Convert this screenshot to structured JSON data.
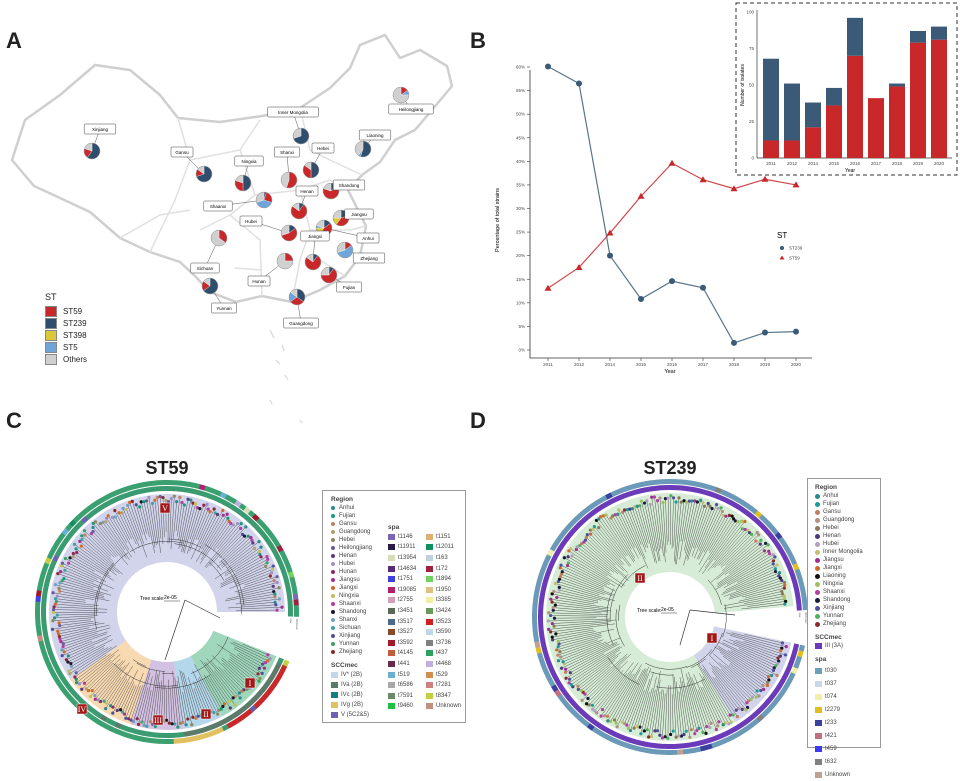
{
  "panels": {
    "a": "A",
    "b": "B",
    "c": "C",
    "d": "D"
  },
  "map": {
    "legend_title": "ST",
    "st_types": [
      {
        "name": "ST59",
        "color": "#c8282a"
      },
      {
        "name": "ST239",
        "color": "#2f4e6e"
      },
      {
        "name": "ST398",
        "color": "#d8c83a"
      },
      {
        "name": "ST5",
        "color": "#6fa5d8"
      },
      {
        "name": "Others",
        "color": "#d0d0d0"
      }
    ],
    "provinces": [
      {
        "name": "Xinjiang",
        "share": {
          "ST239": 0.6,
          "ST59": 0.2,
          "Others": 0.2
        }
      },
      {
        "name": "Heilongjiang",
        "share": {
          "ST59": 0.15,
          "ST5": 0.1,
          "Others": 0.75
        }
      },
      {
        "name": "Inner Mongolia",
        "share": {
          "ST239": 0.7,
          "Others": 0.3
        }
      },
      {
        "name": "Liaoning",
        "share": {
          "ST239": 0.55,
          "ST5": 0.05,
          "Others": 0.4
        }
      },
      {
        "name": "Gansu",
        "share": {
          "ST239": 0.7,
          "ST59": 0.15,
          "Others": 0.15
        }
      },
      {
        "name": "Ningxia",
        "share": {
          "ST239": 0.5,
          "ST59": 0.3,
          "Others": 0.2
        }
      },
      {
        "name": "Shanxi",
        "share": {
          "ST59": 0.55,
          "Others": 0.45
        }
      },
      {
        "name": "Hebei",
        "share": {
          "ST239": 0.5,
          "ST59": 0.35,
          "Others": 0.15
        }
      },
      {
        "name": "Shaanxi",
        "share": {
          "ST5": 0.4,
          "ST239": 0.05,
          "ST59": 0.25,
          "Others": 0.3
        }
      },
      {
        "name": "Shandong",
        "share": {
          "ST59": 0.65,
          "ST239": 0.15,
          "Others": 0.2
        }
      },
      {
        "name": "Henan",
        "share": {
          "ST59": 0.75,
          "ST239": 0.1,
          "Others": 0.15
        }
      },
      {
        "name": "Jiangsu",
        "share": {
          "ST59": 0.4,
          "ST398": 0.15,
          "ST239": 0.2,
          "Others": 0.25
        }
      },
      {
        "name": "Anhui",
        "share": {
          "ST59": 0.45,
          "ST398": 0.15,
          "ST239": 0.15,
          "ST5": 0.05,
          "Others": 0.2
        }
      },
      {
        "name": "Hubei",
        "share": {
          "ST59": 0.55,
          "ST239": 0.15,
          "Others": 0.3
        }
      },
      {
        "name": "Sichuan",
        "share": {
          "ST59": 0.35,
          "Others": 0.65
        }
      },
      {
        "name": "Zhejiang",
        "share": {
          "ST5": 0.55,
          "ST59": 0.15,
          "Others": 0.3
        }
      },
      {
        "name": "Hunan",
        "share": {
          "ST59": 0.25,
          "Others": 0.75
        }
      },
      {
        "name": "Jiangxi",
        "share": {
          "ST59": 0.75,
          "ST239": 0.1,
          "Others": 0.15
        }
      },
      {
        "name": "Fujian",
        "share": {
          "ST59": 0.65,
          "ST239": 0.1,
          "Others": 0.25
        }
      },
      {
        "name": "Yunnan",
        "share": {
          "ST239": 0.65,
          "ST59": 0.2,
          "Others": 0.15
        }
      },
      {
        "name": "Guangdong",
        "share": {
          "ST239": 0.35,
          "ST59": 0.3,
          "ST5": 0.2,
          "Others": 0.15
        }
      }
    ]
  },
  "chart_data": [
    {
      "type": "line",
      "xlabel": "Year",
      "ylabel": "Percentage of total strains",
      "categories": [
        "2011",
        "2012",
        "2014",
        "2015",
        "2016",
        "2017",
        "2018",
        "2019",
        "2020"
      ],
      "ylim": [
        0,
        60
      ],
      "yticks": [
        "0%",
        "5%",
        "10%",
        "15%",
        "20%",
        "25%",
        "30%",
        "35%",
        "40%",
        "45%",
        "50%",
        "55%",
        "60%"
      ],
      "legend_title": "ST",
      "legend_position": "right",
      "grid": false,
      "series": [
        {
          "name": "ST239",
          "color": "#3a5a78",
          "marker": "circle",
          "values": [
            60.1,
            56.5,
            20.0,
            10.8,
            14.6,
            13.2,
            1.5,
            3.7,
            3.9
          ]
        },
        {
          "name": "ST59",
          "color": "#c8282a",
          "marker": "triangle",
          "values": [
            13.1,
            17.5,
            24.8,
            32.6,
            39.6,
            36.1,
            34.2,
            36.2,
            35.0
          ]
        }
      ]
    },
    {
      "type": "bar",
      "stacked": true,
      "xlabel": "Year",
      "ylabel": "Number of isolates",
      "categories": [
        "2011",
        "2012",
        "2014",
        "2015",
        "2016",
        "2017",
        "2018",
        "2019",
        "2020"
      ],
      "ylim": [
        0,
        100
      ],
      "yticks": [
        "0",
        "25",
        "50",
        "75",
        "100"
      ],
      "series": [
        {
          "key": "ST59",
          "color": "#c8282a",
          "values": [
            12,
            12,
            21,
            36,
            70,
            41,
            49,
            79,
            81
          ]
        },
        {
          "key": "ST239",
          "color": "#3a5a78",
          "values": [
            56,
            39,
            17,
            12,
            26,
            0,
            2,
            8,
            9
          ]
        }
      ]
    }
  ],
  "tree_c": {
    "title": "ST59",
    "scale_label": "Tree scale:",
    "scale_value": "2e-05",
    "ring_labels": [
      "SCCmec",
      "spa"
    ],
    "clades": [
      {
        "label": "V",
        "color": "#c9cde6"
      },
      {
        "label": "I",
        "color": "#8fd0b0"
      },
      {
        "label": "II",
        "color": "#a8d0e8"
      },
      {
        "label": "III",
        "color": "#cbb6dc"
      },
      {
        "label": "IV",
        "color": "#f6d2a4"
      }
    ],
    "legend": {
      "region_title": "Region",
      "regions": [
        {
          "name": "Anhui",
          "color": "#2a8a8a"
        },
        {
          "name": "Fujian",
          "color": "#1a9a7a"
        },
        {
          "name": "Gansu",
          "color": "#c08060"
        },
        {
          "name": "Guangdong",
          "color": "#b0a070"
        },
        {
          "name": "Hebei",
          "color": "#8a8a5a"
        },
        {
          "name": "Heilongjiang",
          "color": "#6a5a9a"
        },
        {
          "name": "Henan",
          "color": "#5a3a7a"
        },
        {
          "name": "Hubei",
          "color": "#a090c0"
        },
        {
          "name": "Hunan",
          "color": "#8a2a5a"
        },
        {
          "name": "Jiangsu",
          "color": "#a03090"
        },
        {
          "name": "Jiangxi",
          "color": "#d06a2a"
        },
        {
          "name": "Ningxia",
          "color": "#c0c060"
        },
        {
          "name": "Shaanxi",
          "color": "#b040a0"
        },
        {
          "name": "Shandong",
          "color": "#1a1a2a"
        },
        {
          "name": "Shanxi",
          "color": "#70a0c0"
        },
        {
          "name": "Sichuan",
          "color": "#40a0a0"
        },
        {
          "name": "Xinjiang",
          "color": "#5050a0"
        },
        {
          "name": "Yunnan",
          "color": "#40a060"
        },
        {
          "name": "Zhejiang",
          "color": "#8a2a2a"
        }
      ],
      "sccmec_title": "SCCmec",
      "sccmec": [
        {
          "name": "IV* (2B)",
          "color": "#c0d8e8"
        },
        {
          "name": "IVa (2B)",
          "color": "#5a7a6a"
        },
        {
          "name": "IVc (2B)",
          "color": "#108080"
        },
        {
          "name": "IVg (2B)",
          "color": "#e0c060"
        },
        {
          "name": "V (5C2&5)",
          "color": "#7060b0"
        }
      ],
      "spa_title": "spa",
      "spa": [
        {
          "name": "t1146",
          "color": "#7b68b5"
        },
        {
          "name": "t1151",
          "color": "#e0b070"
        },
        {
          "name": "t11911",
          "color": "#2a1a4a"
        },
        {
          "name": "t12011",
          "color": "#109060"
        },
        {
          "name": "t13954",
          "color": "#d8dcb8"
        },
        {
          "name": "t163",
          "color": "#c0d0e0"
        },
        {
          "name": "t14634",
          "color": "#5a2a7a"
        },
        {
          "name": "t172",
          "color": "#a02040"
        },
        {
          "name": "t1751",
          "color": "#4040e0"
        },
        {
          "name": "t1894",
          "color": "#70d060"
        },
        {
          "name": "t19085",
          "color": "#b0206a"
        },
        {
          "name": "t1950",
          "color": "#e0c080"
        },
        {
          "name": "t2755",
          "color": "#d4a0b8"
        },
        {
          "name": "t3385",
          "color": "#f0f0a0"
        },
        {
          "name": "t3451",
          "color": "#5a6a5a"
        },
        {
          "name": "t3424",
          "color": "#6a9a5a"
        },
        {
          "name": "t3517",
          "color": "#4a6a8a"
        },
        {
          "name": "t3523",
          "color": "#d02020"
        },
        {
          "name": "t3527",
          "color": "#8a4a2a"
        },
        {
          "name": "t3590",
          "color": "#c0d8e8"
        },
        {
          "name": "t3592",
          "color": "#a01a2a"
        },
        {
          "name": "t3736",
          "color": "#808080"
        },
        {
          "name": "t4145",
          "color": "#c0603a"
        },
        {
          "name": "t437",
          "color": "#30a060"
        },
        {
          "name": "t441",
          "color": "#6a2a4a"
        },
        {
          "name": "t4468",
          "color": "#c0b0e0"
        },
        {
          "name": "t519",
          "color": "#6ab0d0"
        },
        {
          "name": "t529",
          "color": "#d09050"
        },
        {
          "name": "t6586",
          "color": "#a8a8a8"
        },
        {
          "name": "t7281",
          "color": "#d08080"
        },
        {
          "name": "t7591",
          "color": "#6a8a6a"
        },
        {
          "name": "t8347",
          "color": "#c0d040"
        },
        {
          "name": "t9460",
          "color": "#20c040"
        },
        {
          "name": "Unknown",
          "color": "#c09080"
        }
      ]
    }
  },
  "tree_d": {
    "title": "ST239",
    "scale_label": "Tree scale:",
    "scale_value": "2e-05",
    "ring_labels": [
      "SCCmec",
      "spa"
    ],
    "clades": [
      {
        "label": "II",
        "color": "#cfe9cf"
      },
      {
        "label": "I",
        "color": "#c9cde6"
      }
    ],
    "legend": {
      "region_title": "Region",
      "regions": [
        {
          "name": "Anhui",
          "color": "#2a8a8a"
        },
        {
          "name": "Fujian",
          "color": "#1a9a9a"
        },
        {
          "name": "Gansu",
          "color": "#c08060"
        },
        {
          "name": "Guangdong",
          "color": "#b09080"
        },
        {
          "name": "Hebei",
          "color": "#8a7a5a"
        },
        {
          "name": "Henan",
          "color": "#4a3a7a"
        },
        {
          "name": "Hubei",
          "color": "#b0a0c0"
        },
        {
          "name": "Inner Mongolia",
          "color": "#c0c070"
        },
        {
          "name": "Jiangsu",
          "color": "#a03090"
        },
        {
          "name": "Jiangxi",
          "color": "#d06a2a"
        },
        {
          "name": "Liaoning",
          "color": "#111111"
        },
        {
          "name": "Ningxia",
          "color": "#a0c060"
        },
        {
          "name": "Shaanxi",
          "color": "#b040a0"
        },
        {
          "name": "Shandong",
          "color": "#1a1a3a"
        },
        {
          "name": "Xinjiang",
          "color": "#5050a0"
        },
        {
          "name": "Yunnan",
          "color": "#50b060"
        },
        {
          "name": "Zhejiang",
          "color": "#8a2a2a"
        }
      ],
      "sccmec_title": "SCCmec",
      "sccmec": [
        {
          "name": "III (3A)",
          "color": "#6a3ab8"
        }
      ],
      "spa_title": "spa",
      "spa": [
        {
          "name": "t030",
          "color": "#6aa0b8"
        },
        {
          "name": "t037",
          "color": "#c8d8e8"
        },
        {
          "name": "t074",
          "color": "#f0f0a8"
        },
        {
          "name": "t2279",
          "color": "#e0c020"
        },
        {
          "name": "t233",
          "color": "#3a40a0"
        },
        {
          "name": "t421",
          "color": "#c07080"
        },
        {
          "name": "t459",
          "color": "#3a3af0"
        },
        {
          "name": "t632",
          "color": "#808080"
        },
        {
          "name": "Unknown",
          "color": "#c0a090"
        }
      ]
    }
  }
}
